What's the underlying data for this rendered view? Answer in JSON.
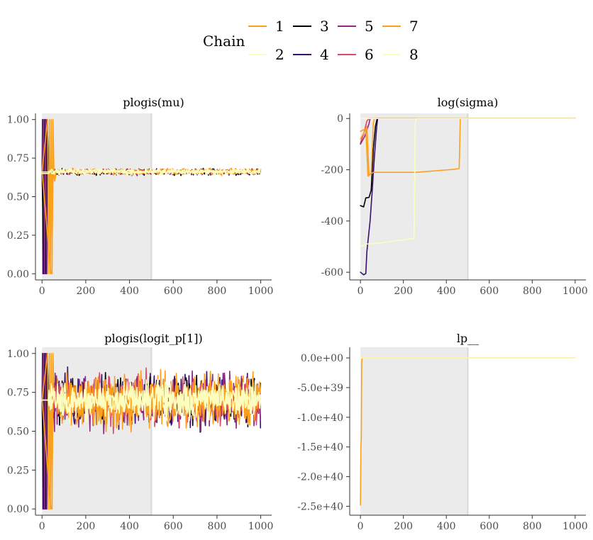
{
  "legend": {
    "title": "Chain",
    "chains": [
      {
        "label": "1",
        "color": "#f9a11b"
      },
      {
        "label": "2",
        "color": "#fcfdbf"
      },
      {
        "label": "3",
        "color": "#000004"
      },
      {
        "label": "4",
        "color": "#3b0f70"
      },
      {
        "label": "5",
        "color": "#8c2981"
      },
      {
        "label": "6",
        "color": "#de4968"
      },
      {
        "label": "7",
        "color": "#fe9f1d"
      },
      {
        "label": "8",
        "color": "#fcfdbf"
      }
    ]
  },
  "colors": {
    "warmup_shade": "#ebebeb",
    "warmup_edge": "#d9d9d9",
    "axis": "#333333",
    "tick_text": "#4d4d4d"
  },
  "chart_data": [
    {
      "type": "line",
      "title": "plogis(mu)",
      "xlim": [
        -30,
        1050
      ],
      "ylim": [
        -0.04,
        1.04
      ],
      "x_ticks": [
        0,
        200,
        400,
        600,
        800,
        1000
      ],
      "x_tick_labels": [
        "0",
        "200",
        "400",
        "600",
        "800",
        "1000"
      ],
      "y_ticks": [
        0,
        0.25,
        0.5,
        0.75,
        1.0
      ],
      "y_tick_labels": [
        "0.00",
        "0.25",
        "0.50",
        "0.75",
        "1.00"
      ],
      "warmup_range": [
        0,
        500
      ],
      "series": [
        {
          "color": "#3b0f70",
          "points": [
            [
              0,
              0.66
            ],
            [
              2,
              1.0
            ],
            [
              4,
              0.0
            ],
            [
              6,
              1.0
            ],
            [
              9,
              0.0
            ],
            [
              12,
              1.0
            ],
            [
              15,
              0.0
            ],
            [
              18,
              1.0
            ],
            [
              21,
              0.0
            ],
            [
              24,
              1.0
            ],
            [
              27,
              0.66
            ],
            [
              30,
              0.65
            ]
          ],
          "post": {
            "level": 0.66,
            "amp": 0.015,
            "seed": 4
          }
        },
        {
          "color": "#000004",
          "points": [
            [
              0,
              0.66
            ],
            [
              10,
              0.0
            ],
            [
              14,
              1.0
            ],
            [
              20,
              0.0
            ],
            [
              24,
              1.0
            ],
            [
              30,
              0.67
            ]
          ],
          "post": {
            "level": 0.66,
            "amp": 0.015,
            "seed": 3
          }
        },
        {
          "color": "#8c2981",
          "points": [
            [
              0,
              0.66
            ],
            [
              6,
              1.0
            ],
            [
              11,
              0.0
            ],
            [
              16,
              1.0
            ],
            [
              22,
              0.0
            ],
            [
              28,
              0.66
            ]
          ],
          "post": {
            "level": 0.66,
            "amp": 0.015,
            "seed": 5
          }
        },
        {
          "color": "#de4968",
          "points": [
            [
              0,
              0.66
            ],
            [
              30,
              0.66
            ]
          ],
          "post": {
            "level": 0.665,
            "amp": 0.012,
            "seed": 6
          }
        },
        {
          "color": "#f9a11b",
          "points": [
            [
              0,
              0.66
            ],
            [
              25,
              1.0
            ],
            [
              30,
              0.0
            ],
            [
              34,
              1.0
            ],
            [
              38,
              0.0
            ],
            [
              42,
              1.0
            ],
            [
              46,
              0.0
            ],
            [
              50,
              1.0
            ],
            [
              55,
              0.62
            ],
            [
              60,
              0.66
            ]
          ],
          "post": {
            "level": 0.66,
            "amp": 0.015,
            "seed": 1
          }
        },
        {
          "color": "#fe9f1d",
          "points": [
            [
              0,
              0.66
            ],
            [
              40,
              0.01
            ],
            [
              45,
              0.0
            ],
            [
              50,
              0.65
            ],
            [
              58,
              0.6
            ],
            [
              65,
              0.66
            ]
          ],
          "post": {
            "level": 0.665,
            "amp": 0.015,
            "seed": 7
          }
        },
        {
          "color": "#fcfdbf",
          "points": [
            [
              0,
              0.66
            ],
            [
              30,
              0.66
            ]
          ],
          "post": {
            "level": 0.665,
            "amp": 0.015,
            "seed": 2
          }
        },
        {
          "color": "#fcfdbf",
          "points": [
            [
              0,
              0.65
            ],
            [
              30,
              0.65
            ]
          ],
          "post": {
            "level": 0.66,
            "amp": 0.015,
            "seed": 8
          }
        }
      ]
    },
    {
      "type": "line",
      "title": "log(sigma)",
      "xlim": [
        -50,
        1050
      ],
      "ylim": [
        -630,
        20
      ],
      "x_ticks": [
        0,
        200,
        400,
        600,
        800,
        1000
      ],
      "x_tick_labels": [
        "0",
        "200",
        "400",
        "600",
        "800",
        "1000"
      ],
      "y_ticks": [
        0,
        -200,
        -400,
        -600
      ],
      "y_tick_labels": [
        "0",
        "-200",
        "-400",
        "-600"
      ],
      "warmup_range": [
        0,
        500
      ],
      "series": [
        {
          "color": "#de4968",
          "points": [
            [
              0,
              -95
            ],
            [
              15,
              -60
            ],
            [
              30,
              -10
            ],
            [
              40,
              0
            ],
            [
              1000,
              0
            ]
          ]
        },
        {
          "color": "#8c2981",
          "points": [
            [
              0,
              -100
            ],
            [
              20,
              -70
            ],
            [
              40,
              -20
            ],
            [
              45,
              0
            ],
            [
              1000,
              0
            ]
          ]
        },
        {
          "color": "#3b0f70",
          "points": [
            [
              0,
              -600
            ],
            [
              15,
              -610
            ],
            [
              25,
              -605
            ],
            [
              30,
              -520
            ],
            [
              45,
              -400
            ],
            [
              55,
              -280
            ],
            [
              65,
              -150
            ],
            [
              75,
              -40
            ],
            [
              80,
              0
            ],
            [
              1000,
              0
            ]
          ]
        },
        {
          "color": "#000004",
          "points": [
            [
              0,
              -340
            ],
            [
              15,
              -345
            ],
            [
              25,
              -310
            ],
            [
              40,
              -308
            ],
            [
              50,
              -280
            ],
            [
              60,
              -120
            ],
            [
              70,
              -30
            ],
            [
              78,
              0
            ],
            [
              1000,
              0
            ]
          ]
        },
        {
          "color": "#fe9f1d",
          "points": [
            [
              0,
              -80
            ],
            [
              20,
              -50
            ],
            [
              30,
              -30
            ],
            [
              40,
              -220
            ],
            [
              60,
              -210
            ],
            [
              260,
              -210
            ],
            [
              440,
              -198
            ],
            [
              460,
              -195
            ],
            [
              465,
              0
            ],
            [
              1000,
              0
            ]
          ]
        },
        {
          "color": "#f9a11b",
          "points": [
            [
              0,
              -50
            ],
            [
              25,
              -40
            ],
            [
              35,
              -225
            ],
            [
              50,
              -215
            ],
            [
              60,
              -20
            ],
            [
              65,
              0
            ],
            [
              1000,
              0
            ]
          ]
        },
        {
          "color": "#fcfdbf",
          "points": [
            [
              0,
              -500
            ],
            [
              30,
              -490
            ],
            [
              100,
              -485
            ],
            [
              250,
              -468
            ],
            [
              255,
              -20
            ],
            [
              260,
              0
            ],
            [
              1000,
              0
            ]
          ]
        },
        {
          "color": "#fcfdbf",
          "points": [
            [
              0,
              0
            ],
            [
              1000,
              0
            ]
          ]
        }
      ]
    },
    {
      "type": "line",
      "title": "plogis(logit_p[1])",
      "xlim": [
        -30,
        1050
      ],
      "ylim": [
        -0.04,
        1.04
      ],
      "x_ticks": [
        0,
        200,
        400,
        600,
        800,
        1000
      ],
      "x_tick_labels": [
        "0",
        "200",
        "400",
        "600",
        "800",
        "1000"
      ],
      "y_ticks": [
        0,
        0.25,
        0.5,
        0.75,
        1.0
      ],
      "y_tick_labels": [
        "0.00",
        "0.25",
        "0.50",
        "0.75",
        "1.00"
      ],
      "warmup_range": [
        0,
        500
      ],
      "series": [
        {
          "color": "#3b0f70",
          "points": [
            [
              0,
              0.7
            ],
            [
              2,
              1.0
            ],
            [
              4,
              0.0
            ],
            [
              6,
              1.0
            ],
            [
              9,
              0.0
            ],
            [
              12,
              1.0
            ],
            [
              15,
              0.0
            ],
            [
              18,
              1.0
            ],
            [
              21,
              0.0
            ],
            [
              24,
              1.0
            ],
            [
              28,
              0.7
            ]
          ],
          "post": {
            "level": 0.7,
            "amp": 0.14,
            "seed": 14
          }
        },
        {
          "color": "#000004",
          "points": [
            [
              0,
              0.7
            ],
            [
              10,
              0.0
            ],
            [
              14,
              1.0
            ],
            [
              20,
              0.0
            ],
            [
              24,
              1.0
            ],
            [
              30,
              0.7
            ]
          ],
          "post": {
            "level": 0.7,
            "amp": 0.12,
            "seed": 13
          }
        },
        {
          "color": "#8c2981",
          "points": [
            [
              0,
              0.7
            ],
            [
              6,
              1.0
            ],
            [
              11,
              0.0
            ],
            [
              16,
              1.0
            ],
            [
              22,
              0.0
            ],
            [
              28,
              0.7
            ]
          ],
          "post": {
            "level": 0.7,
            "amp": 0.14,
            "seed": 15
          }
        },
        {
          "color": "#de4968",
          "points": [
            [
              0,
              0.7
            ],
            [
              30,
              0.7
            ]
          ],
          "post": {
            "level": 0.7,
            "amp": 0.13,
            "seed": 16
          }
        },
        {
          "color": "#fe9f1d",
          "points": [
            [
              0,
              0.7
            ],
            [
              40,
              0.01
            ],
            [
              45,
              0.0
            ],
            [
              50,
              0.7
            ],
            [
              60,
              0.7
            ]
          ],
          "post": {
            "level": 0.7,
            "amp": 0.14,
            "seed": 17
          }
        },
        {
          "color": "#f9a11b",
          "points": [
            [
              0,
              0.7
            ],
            [
              25,
              1.0
            ],
            [
              30,
              0.0
            ],
            [
              34,
              1.0
            ],
            [
              38,
              0.0
            ],
            [
              42,
              1.0
            ],
            [
              46,
              0.0
            ],
            [
              50,
              1.0
            ],
            [
              55,
              0.7
            ],
            [
              60,
              0.7
            ]
          ],
          "post": {
            "level": 0.7,
            "amp": 0.13,
            "seed": 11
          }
        },
        {
          "color": "#fcfdbf",
          "points": [
            [
              0,
              0.7
            ],
            [
              30,
              0.7
            ]
          ],
          "post": {
            "level": 0.7,
            "amp": 0.09,
            "seed": 12
          }
        },
        {
          "color": "#fcfdbf",
          "points": [
            [
              0,
              0.7
            ],
            [
              30,
              0.7
            ]
          ],
          "post": {
            "level": 0.69,
            "amp": 0.09,
            "seed": 18
          }
        }
      ]
    },
    {
      "type": "line",
      "title": "lp__",
      "xlim": [
        -50,
        1050
      ],
      "ylim": [
        -2.65e+40,
        1.8e+39
      ],
      "x_ticks": [
        0,
        200,
        400,
        600,
        800,
        1000
      ],
      "x_tick_labels": [
        "0",
        "200",
        "400",
        "600",
        "800",
        "1000"
      ],
      "y_ticks": [
        0,
        -5e+39,
        -1e+40,
        -1.5e+40,
        -2e+40,
        -2.5e+40
      ],
      "y_tick_labels": [
        "0.0e+00",
        "-5.0e+39",
        "-1.0e+40",
        "-1.5e+40",
        "-2.0e+40",
        "-2.5e+40"
      ],
      "warmup_range": [
        0,
        500
      ],
      "series": [
        {
          "color": "#f9a11b",
          "points": [
            [
              0,
              -2.48e+40
            ],
            [
              2,
              -1.5e+40
            ],
            [
              4,
              -1.35e+40
            ],
            [
              6,
              -1e+39
            ],
            [
              8,
              0
            ],
            [
              1000,
              0
            ]
          ]
        },
        {
          "color": "#fcfdbf",
          "points": [
            [
              0,
              0
            ],
            [
              1000,
              0
            ]
          ]
        }
      ]
    }
  ]
}
